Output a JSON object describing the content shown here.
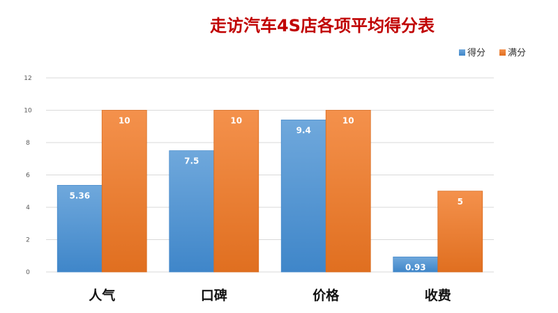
{
  "chart_data": {
    "type": "bar",
    "title": "走访汽车4S店各项平均得分表",
    "categories": [
      "人气",
      "口碑",
      "价格",
      "收费"
    ],
    "series": [
      {
        "name": "得分",
        "values": [
          5.36,
          7.5,
          9.4,
          0.93
        ],
        "labels": [
          "5.36",
          "7.5",
          "9.4",
          "0.93"
        ]
      },
      {
        "name": "满分",
        "values": [
          10,
          10,
          10,
          5
        ],
        "labels": [
          "10",
          "10",
          "10",
          "5"
        ]
      }
    ],
    "ylim": [
      0,
      12
    ],
    "yticks": [
      "0",
      "2",
      "4",
      "6",
      "8",
      "10",
      "12"
    ],
    "grid": true,
    "legend_position": "top-right",
    "colors": {
      "title": "#c00000",
      "series_1": "#5b9bd5",
      "series_2": "#ed7d31"
    }
  }
}
